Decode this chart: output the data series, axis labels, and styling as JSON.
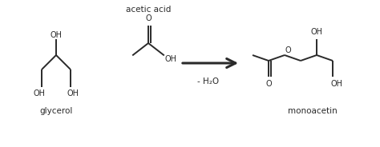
{
  "bg_color": "#ffffff",
  "line_color": "#2a2a2a",
  "text_color": "#2a2a2a",
  "figsize": [
    4.74,
    1.84
  ],
  "dpi": 100,
  "glycerol_label": "glycerol",
  "acetic_acid_label": "acetic acid",
  "monoacetin_label": "monoacetin",
  "arrow_label": "- H₂O",
  "lw": 1.4,
  "fs": 7.0
}
